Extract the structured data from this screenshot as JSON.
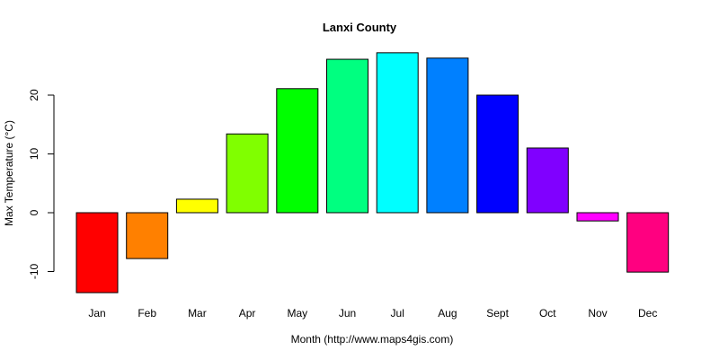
{
  "chart_data": {
    "type": "bar",
    "title": "Lanxi County",
    "xlabel": "Month (http://www.maps4gis.com)",
    "ylabel": "Max Temperature (°C)",
    "categories": [
      "Jan",
      "Feb",
      "Mar",
      "Apr",
      "May",
      "Jun",
      "Jul",
      "Aug",
      "Sept",
      "Oct",
      "Nov",
      "Dec"
    ],
    "values": [
      -13.6,
      -7.8,
      2.3,
      13.4,
      21.1,
      26.1,
      27.2,
      26.3,
      20.0,
      11.0,
      -1.4,
      -10.1
    ],
    "colors": [
      "#FF0000",
      "#FF8000",
      "#FFFF00",
      "#80FF00",
      "#00FF00",
      "#00FF80",
      "#00FFFF",
      "#0080FF",
      "#0000FF",
      "#8000FF",
      "#FF00FF",
      "#FF0080"
    ],
    "yticks": [
      -10,
      0,
      10,
      20
    ],
    "ylim": [
      -14,
      28
    ],
    "grid": false,
    "legend": null
  }
}
